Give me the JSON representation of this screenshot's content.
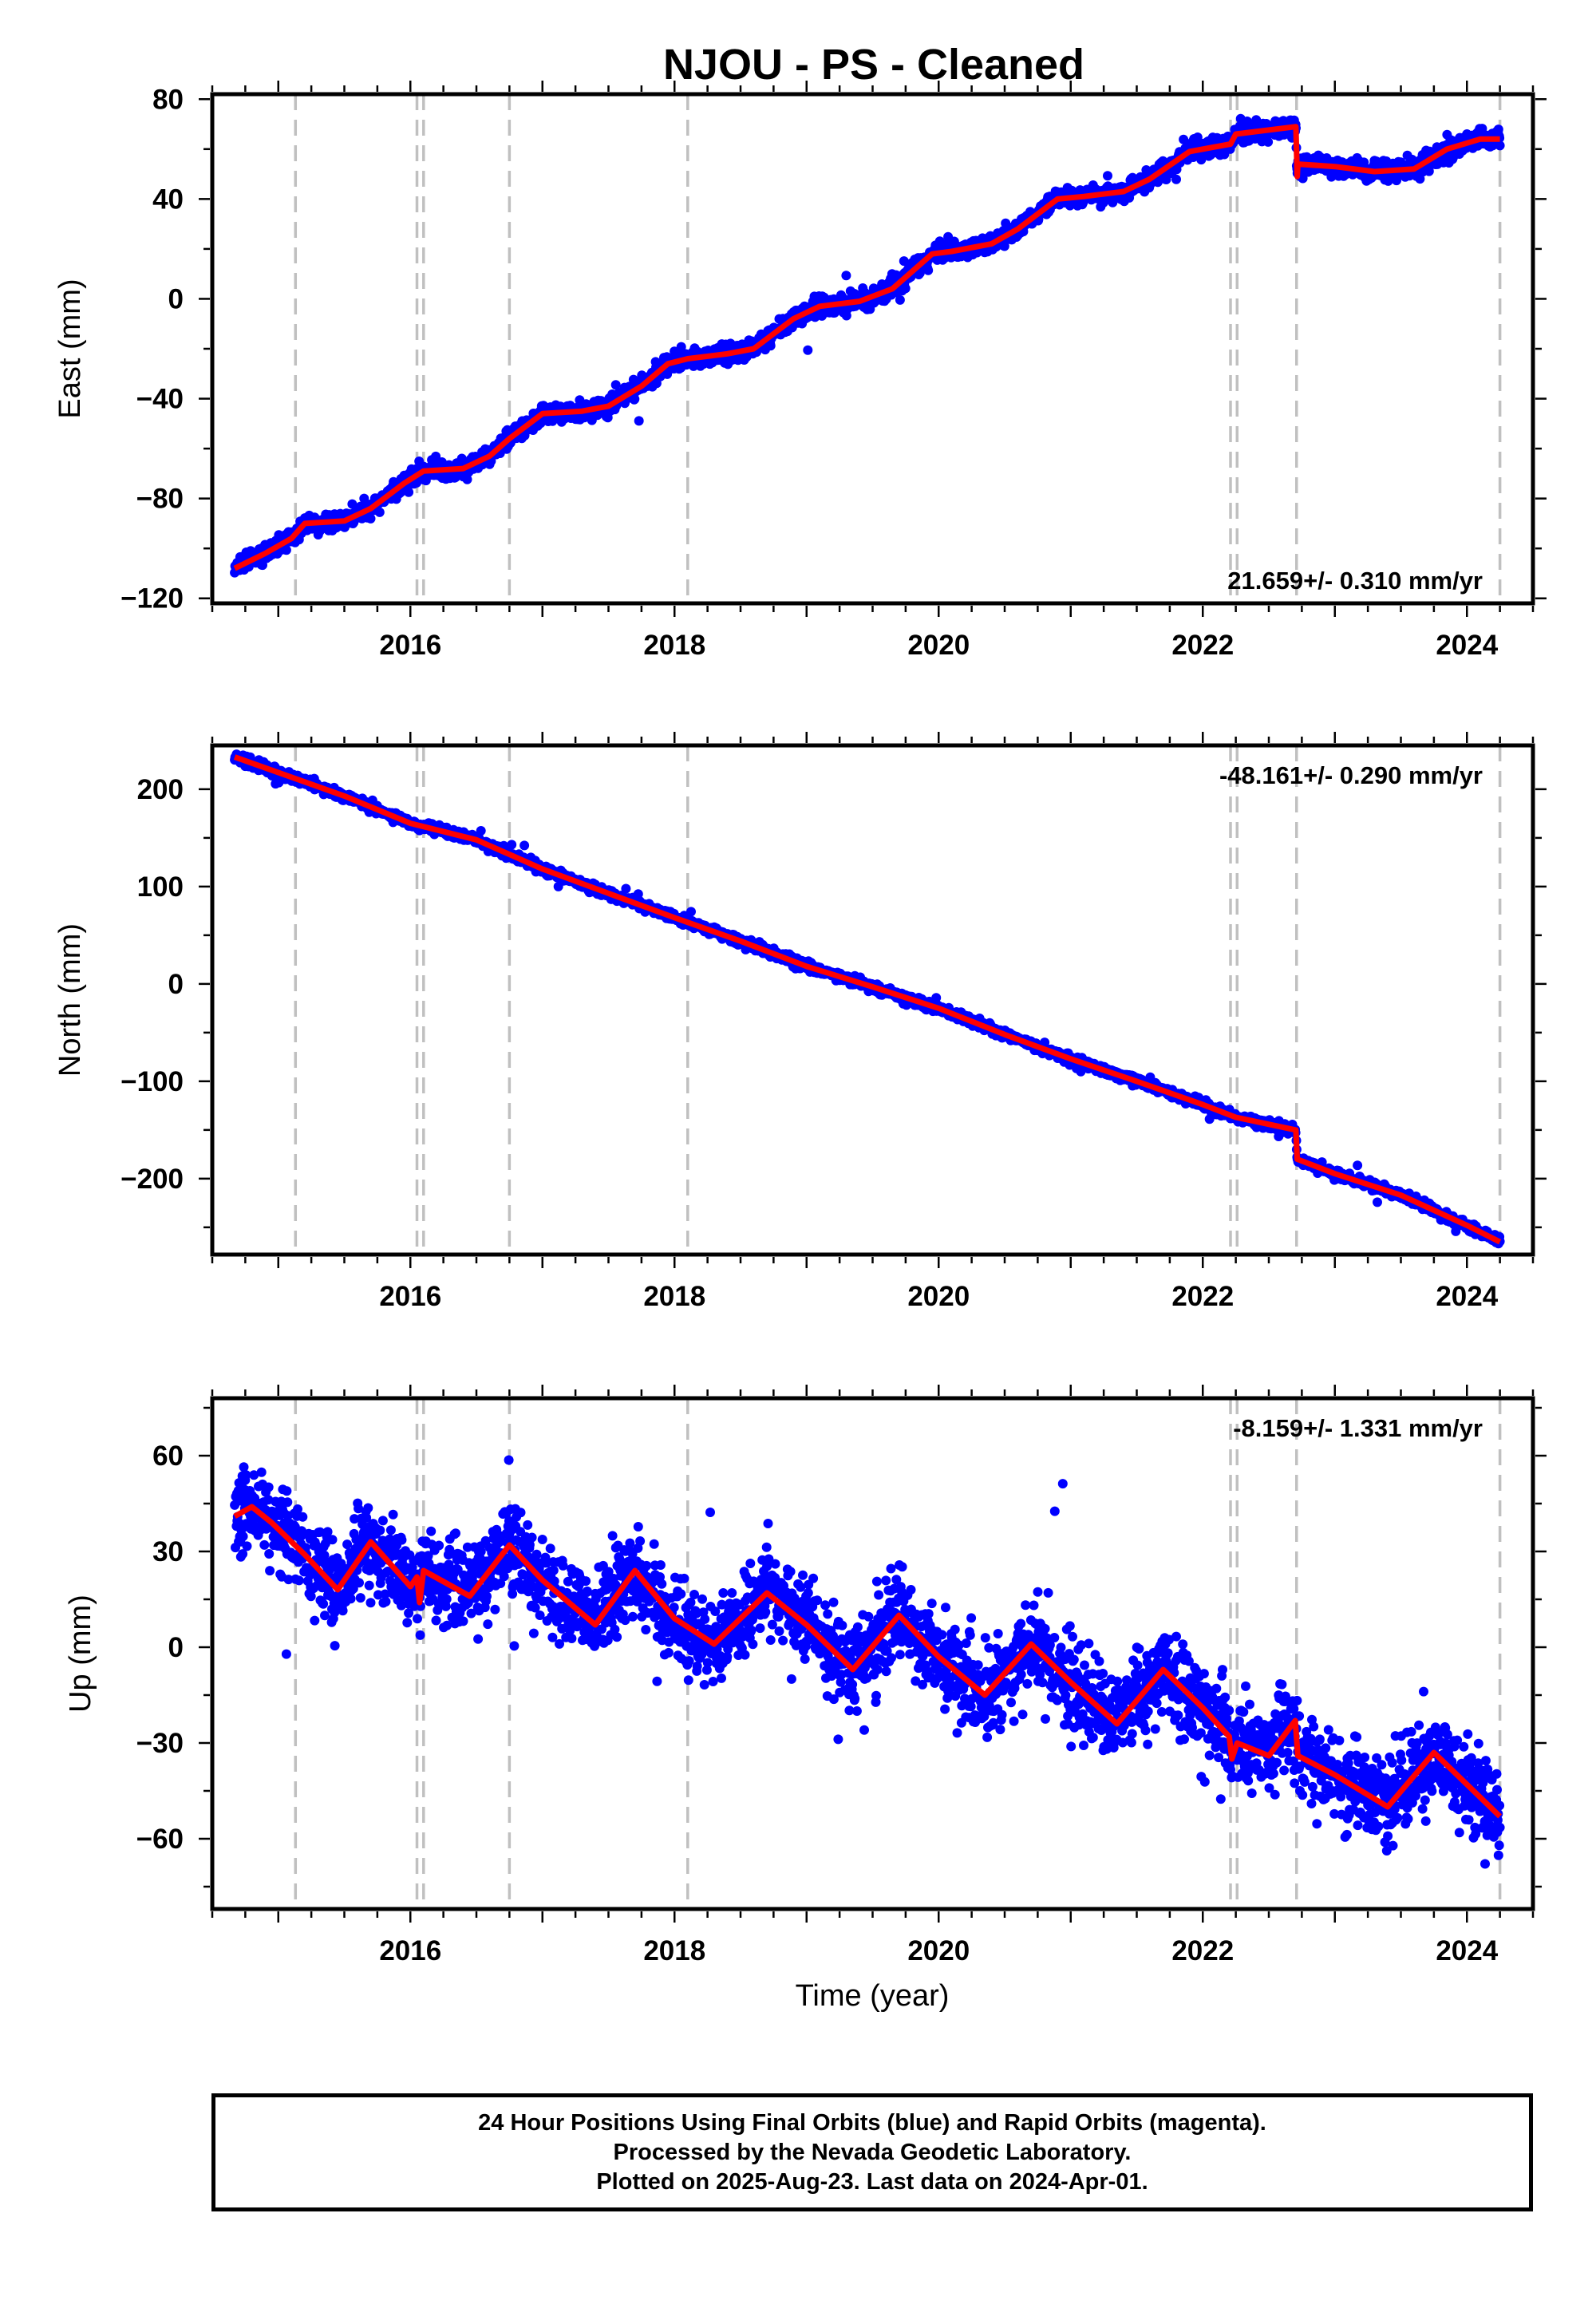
{
  "title": "NJOU  - PS - Cleaned",
  "xlabel": "Time (year)",
  "colors": {
    "final_orbits": "#0000ff",
    "model": "#ff0000",
    "equipment_change": "#c0c0c0",
    "frame": "#000000"
  },
  "footer": {
    "line1": "24 Hour Positions Using Final Orbits (blue) and Rapid Orbits (magenta).",
    "line2": "Processed by the Nevada Geodetic Laboratory.",
    "line3": "Plotted on 2025-Aug-23. Last data on 2024-Apr-01."
  },
  "chart_data": [
    {
      "type": "scatter",
      "component": "east",
      "ylabel": "East (mm)",
      "rate_label": "21.659+/- 0.310 mm/yr",
      "rate_position": "bottom-right",
      "xlim": [
        2014.5,
        2024.5
      ],
      "ylim": [
        -122,
        82
      ],
      "yticks": [
        -120,
        -80,
        -40,
        0,
        40,
        80
      ],
      "xticks": [
        2016,
        2018,
        2020,
        2022,
        2024
      ],
      "grid": false,
      "time_range": [
        2014.67,
        2024.25
      ],
      "event_lines": [
        2015.13,
        2016.05,
        2016.1,
        2016.75,
        2018.1,
        2022.21,
        2022.26,
        2022.71,
        2024.25
      ],
      "trend": {
        "slope_mm_per_yr": 21.659,
        "sigma": 0.31
      },
      "model_knots": [
        [
          2014.67,
          -108
        ],
        [
          2014.9,
          -102
        ],
        [
          2015.1,
          -96
        ],
        [
          2015.2,
          -90
        ],
        [
          2015.5,
          -89
        ],
        [
          2015.7,
          -84
        ],
        [
          2015.95,
          -74
        ],
        [
          2016.1,
          -69
        ],
        [
          2016.4,
          -68
        ],
        [
          2016.6,
          -63
        ],
        [
          2016.75,
          -56
        ],
        [
          2017.0,
          -46
        ],
        [
          2017.3,
          -45
        ],
        [
          2017.5,
          -43
        ],
        [
          2017.75,
          -35
        ],
        [
          2017.95,
          -26
        ],
        [
          2018.1,
          -24
        ],
        [
          2018.4,
          -22
        ],
        [
          2018.6,
          -20
        ],
        [
          2018.9,
          -8
        ],
        [
          2019.1,
          -3
        ],
        [
          2019.4,
          -1
        ],
        [
          2019.65,
          4
        ],
        [
          2019.95,
          18
        ],
        [
          2020.1,
          19
        ],
        [
          2020.4,
          22
        ],
        [
          2020.6,
          28
        ],
        [
          2020.9,
          40
        ],
        [
          2021.1,
          41
        ],
        [
          2021.4,
          43
        ],
        [
          2021.6,
          48
        ],
        [
          2021.9,
          59
        ],
        [
          2022.21,
          62
        ],
        [
          2022.25,
          66
        ],
        [
          2022.705,
          69
        ],
        [
          2022.715,
          49
        ],
        [
          2022.72,
          54
        ],
        [
          2023.0,
          53
        ],
        [
          2023.3,
          51
        ],
        [
          2023.6,
          52
        ],
        [
          2023.85,
          60
        ],
        [
          2024.1,
          64
        ],
        [
          2024.25,
          64
        ]
      ],
      "scatter_sigma_mm": 1.8,
      "seasonal_amp_mm": 0,
      "seed": 11
    },
    {
      "type": "scatter",
      "component": "north",
      "ylabel": "North (mm)",
      "rate_label": "-48.161+/- 0.290 mm/yr",
      "rate_position": "top-right",
      "xlim": [
        2014.5,
        2024.5
      ],
      "ylim": [
        -278,
        245
      ],
      "yticks": [
        -200,
        -100,
        0,
        100,
        200
      ],
      "xticks": [
        2016,
        2018,
        2020,
        2022,
        2024
      ],
      "grid": false,
      "time_range": [
        2014.67,
        2024.25
      ],
      "event_lines": [
        2015.13,
        2016.05,
        2016.1,
        2016.75,
        2018.1,
        2022.21,
        2022.26,
        2022.71,
        2024.25
      ],
      "trend": {
        "slope_mm_per_yr": -48.161,
        "sigma": 0.29
      },
      "model_knots": [
        [
          2014.67,
          233
        ],
        [
          2015.5,
          193
        ],
        [
          2016.0,
          165
        ],
        [
          2016.5,
          148
        ],
        [
          2017.0,
          118
        ],
        [
          2017.5,
          93
        ],
        [
          2018.0,
          68
        ],
        [
          2018.5,
          44
        ],
        [
          2019.0,
          18
        ],
        [
          2019.5,
          -3
        ],
        [
          2020.0,
          -25
        ],
        [
          2020.5,
          -52
        ],
        [
          2021.0,
          -77
        ],
        [
          2021.5,
          -100
        ],
        [
          2022.0,
          -124
        ],
        [
          2022.25,
          -137
        ],
        [
          2022.705,
          -150
        ],
        [
          2022.715,
          -180
        ],
        [
          2023.0,
          -195
        ],
        [
          2023.5,
          -217
        ],
        [
          2024.0,
          -248
        ],
        [
          2024.25,
          -265
        ]
      ],
      "scatter_sigma_mm": 2.2,
      "seasonal_amp_mm": 0,
      "seed": 23
    },
    {
      "type": "scatter",
      "component": "up",
      "ylabel": "Up (mm)",
      "rate_label": "-8.159+/- 1.331 mm/yr",
      "rate_position": "top-right",
      "xlim": [
        2014.5,
        2024.5
      ],
      "ylim": [
        -82,
        78
      ],
      "yticks": [
        -60,
        -30,
        0,
        30,
        60
      ],
      "xticks": [
        2016,
        2018,
        2020,
        2022,
        2024
      ],
      "grid": false,
      "time_range": [
        2014.67,
        2024.25
      ],
      "event_lines": [
        2015.13,
        2016.05,
        2016.1,
        2016.75,
        2018.1,
        2022.21,
        2022.26,
        2022.71,
        2024.25
      ],
      "trend": {
        "slope_mm_per_yr": -8.159,
        "sigma": 1.331
      },
      "model_knots": [
        [
          2014.67,
          41
        ],
        [
          2014.8,
          44
        ],
        [
          2014.95,
          39
        ],
        [
          2015.2,
          29
        ],
        [
          2015.45,
          18
        ],
        [
          2015.7,
          33
        ],
        [
          2016.0,
          19
        ],
        [
          2016.05,
          22
        ],
        [
          2016.07,
          14
        ],
        [
          2016.1,
          24
        ],
        [
          2016.45,
          16
        ],
        [
          2016.75,
          32
        ],
        [
          2017.0,
          21
        ],
        [
          2017.4,
          7
        ],
        [
          2017.7,
          24
        ],
        [
          2018.0,
          9
        ],
        [
          2018.3,
          1
        ],
        [
          2018.7,
          17
        ],
        [
          2019.0,
          7
        ],
        [
          2019.35,
          -7
        ],
        [
          2019.7,
          10
        ],
        [
          2020.0,
          -3
        ],
        [
          2020.35,
          -15
        ],
        [
          2020.7,
          1
        ],
        [
          2021.0,
          -11
        ],
        [
          2021.35,
          -24
        ],
        [
          2021.7,
          -7
        ],
        [
          2022.0,
          -19
        ],
        [
          2022.2,
          -28
        ],
        [
          2022.22,
          -35
        ],
        [
          2022.26,
          -30
        ],
        [
          2022.5,
          -34
        ],
        [
          2022.7,
          -23
        ],
        [
          2022.72,
          -34
        ],
        [
          2023.0,
          -40
        ],
        [
          2023.4,
          -50
        ],
        [
          2023.75,
          -33
        ],
        [
          2024.0,
          -43
        ],
        [
          2024.25,
          -53
        ]
      ],
      "scatter_sigma_mm": 6.5,
      "seasonal_amp_mm": 0,
      "seed": 37
    }
  ]
}
